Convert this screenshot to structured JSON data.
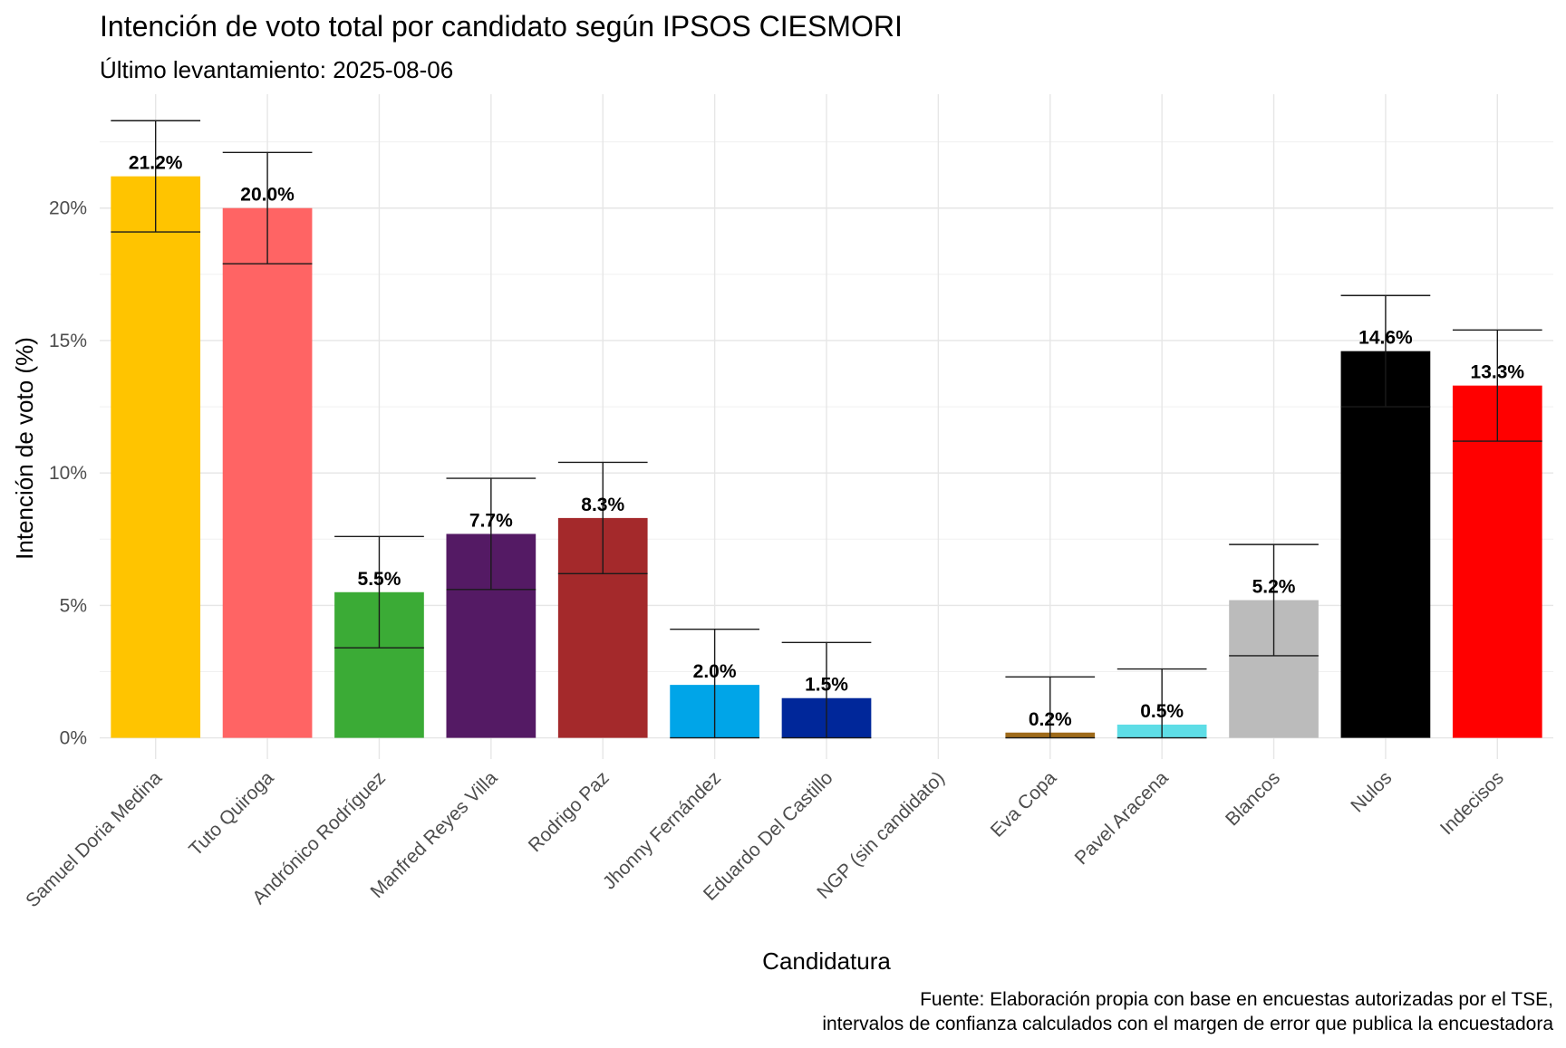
{
  "chart_data": {
    "type": "bar",
    "title": "Intención de voto total por candidato según IPSOS CIESMORI",
    "subtitle": "Último levantamiento: 2025-08-06",
    "xlabel": "Candidatura",
    "ylabel": "Intención de voto (%)",
    "caption": [
      "Fuente: Elaboración propia con base en encuestas autorizadas por el TSE,",
      "intervalos de confianza calculados con el margen de error que publica la encuestadora"
    ],
    "ylim": [
      -0.8,
      24.3
    ],
    "yticks": [
      0,
      5,
      10,
      15,
      20
    ],
    "ytick_labels": [
      "0%",
      "5%",
      "10%",
      "15%",
      "20%"
    ],
    "grid": true,
    "legend": "none",
    "categories": [
      "Samuel Doria Medina",
      "Tuto Quiroga",
      "Andrónico Rodríguez",
      "Manfred Reyes Villa",
      "Rodrigo Paz",
      "Jhonny Fernández",
      "Eduardo Del Castillo",
      "NGP (sin candidato)",
      "Eva Copa",
      "Pavel Aracena",
      "Blancos",
      "Nulos",
      "Indecisos"
    ],
    "values": [
      21.2,
      20.0,
      5.5,
      7.7,
      8.3,
      2.0,
      1.5,
      null,
      0.2,
      0.5,
      5.2,
      14.6,
      13.3
    ],
    "value_labels": [
      "21.2%",
      "20.0%",
      "5.5%",
      "7.7%",
      "8.3%",
      "2.0%",
      "1.5%",
      "",
      "0.2%",
      "0.5%",
      "5.2%",
      "14.6%",
      "13.3%"
    ],
    "ci_low": [
      19.1,
      17.9,
      3.4,
      5.6,
      6.2,
      0.0,
      0.0,
      null,
      0.0,
      0.0,
      3.1,
      12.5,
      11.2
    ],
    "ci_high": [
      23.3,
      22.1,
      7.6,
      9.8,
      10.4,
      4.1,
      3.6,
      null,
      2.3,
      2.6,
      7.3,
      16.7,
      15.4
    ],
    "colors": [
      "#FFC400",
      "#FF6464",
      "#3BAB36",
      "#541A64",
      "#A4292B",
      "#00A5E8",
      "#00279A",
      "#888888",
      "#9E6A1A",
      "#5EDDE6",
      "#BBBBBB",
      "#000000",
      "#FF0000"
    ]
  }
}
